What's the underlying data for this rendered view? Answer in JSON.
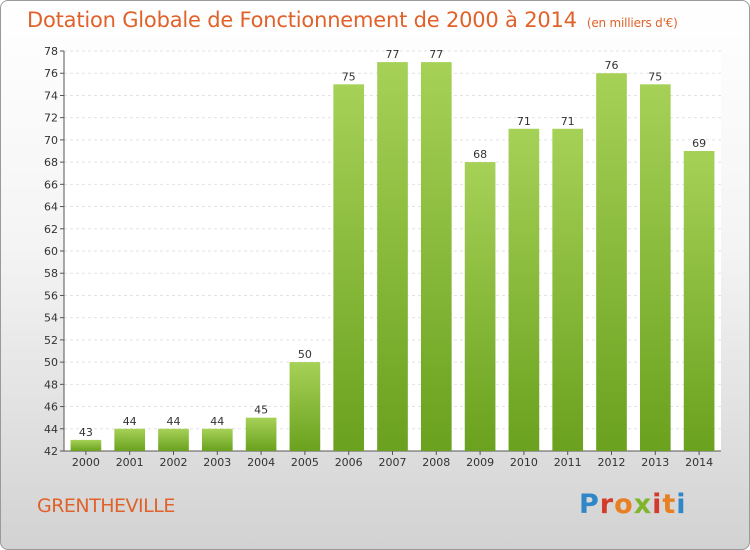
{
  "header": {
    "title": "Dotation Globale de Fonctionnement de 2000 à 2014",
    "subtitle": "(en milliers d'€)"
  },
  "footer": {
    "commune": "GRENTHEVILLE",
    "logo": "Proxiti"
  },
  "colors": {
    "bar_light": "#a6d157",
    "bar_dark": "#6aa11e",
    "title": "#e0622a"
  },
  "chart_data": {
    "type": "bar",
    "title": "Dotation Globale de Fonctionnement de 2000 à 2014",
    "subtitle": "(en milliers d'€)",
    "categories": [
      "2000",
      "2001",
      "2002",
      "2003",
      "2004",
      "2005",
      "2006",
      "2007",
      "2008",
      "2009",
      "2010",
      "2011",
      "2012",
      "2013",
      "2014"
    ],
    "values": [
      43,
      44,
      44,
      44,
      45,
      50,
      75,
      77,
      77,
      68,
      71,
      71,
      76,
      75,
      69
    ],
    "ylim": [
      42,
      78
    ],
    "yticks": [
      42,
      44,
      46,
      48,
      50,
      52,
      54,
      56,
      58,
      60,
      62,
      64,
      66,
      68,
      70,
      72,
      74,
      76,
      78
    ],
    "grid": true,
    "legend": "none"
  }
}
